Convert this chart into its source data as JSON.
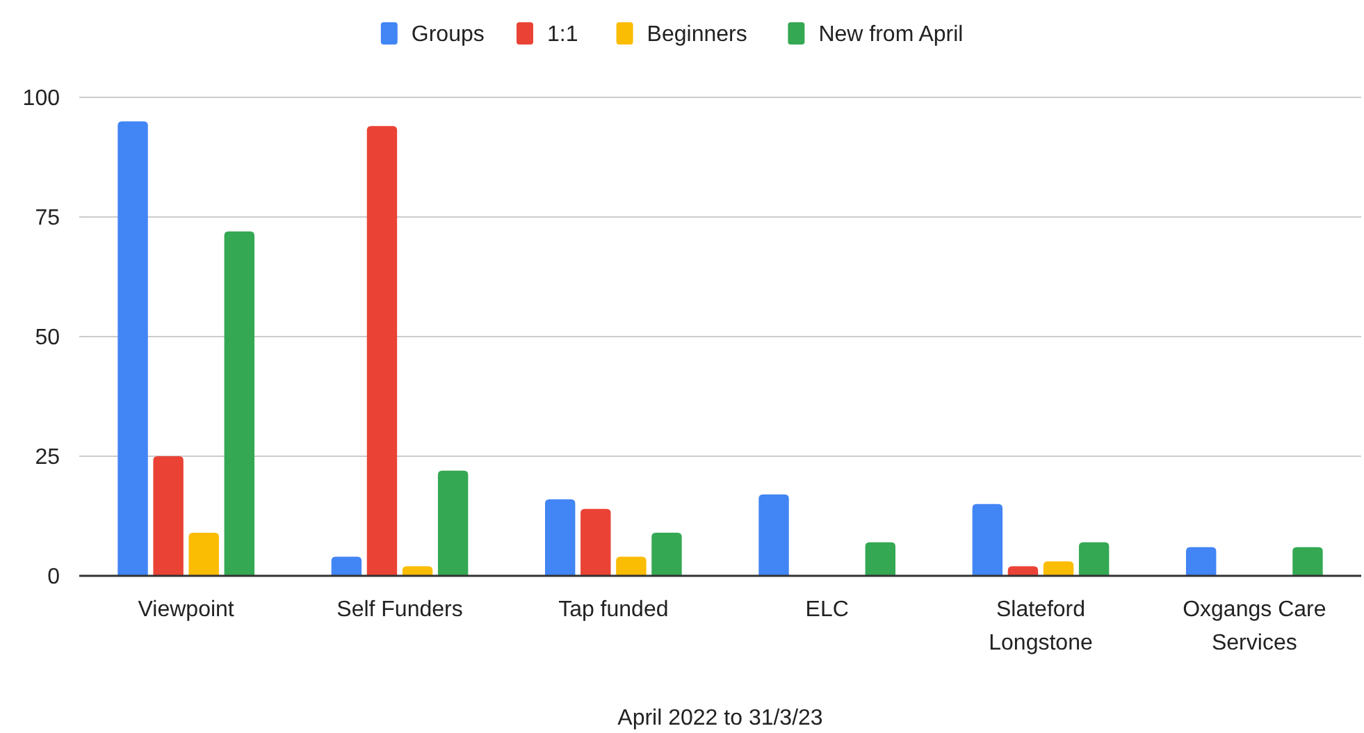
{
  "chart_data": {
    "type": "bar",
    "xlabel": "April 2022 to 31/3/23",
    "categories": [
      "Viewpoint",
      "Self Funders",
      "Tap funded",
      "ELC",
      "Slateford Longstone",
      "Oxgangs Care Services"
    ],
    "series": [
      {
        "name": "Groups",
        "color": "#4285f4",
        "values": [
          95,
          4,
          16,
          17,
          15,
          6
        ]
      },
      {
        "name": "1:1",
        "color": "#ea4335",
        "values": [
          25,
          94,
          14,
          null,
          2,
          null
        ]
      },
      {
        "name": "Beginners",
        "color": "#fbbc04",
        "values": [
          9,
          2,
          4,
          null,
          3,
          null
        ]
      },
      {
        "name": "New from April",
        "color": "#34a853",
        "values": [
          72,
          22,
          9,
          7,
          7,
          6
        ]
      }
    ],
    "ylim": [
      0,
      100
    ],
    "yticks": [
      0,
      25,
      50,
      75,
      100
    ],
    "grid": "y",
    "legend": "top"
  }
}
